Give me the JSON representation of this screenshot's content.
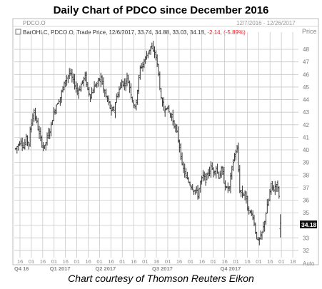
{
  "title": "Daily Chart of PDCO since December 2016",
  "caption": "Chart courtesy of Thomson Reuters Eikon",
  "header": {
    "ric": "PDCO.O",
    "date_range": "12/7/2016 - 12/26/2017",
    "price_label": "Price",
    "legend_text": "BarOHLC, PDCO.O, Trade Price, 12/6/2017, 33.74, 34.88, 33.03, 34.18,",
    "legend_change": "-2.14, (-5.89%)"
  },
  "last_price_tag": "34.18",
  "auto_label": "Auto",
  "colors": {
    "bars": "#333333",
    "grid": "#c8c8c8",
    "change": "#e8202a",
    "tag_bg": "#111111"
  },
  "chart_data": {
    "type": "ohlc",
    "ylim": [
      31.6,
      48.8
    ],
    "yticks": [
      "32",
      "33",
      "34",
      "35",
      "36",
      "37",
      "38",
      "39",
      "40",
      "41",
      "42",
      "43",
      "44",
      "45",
      "46",
      "47",
      "48"
    ],
    "x_ticks": [
      "16",
      "01",
      "16",
      "01",
      "16",
      "01",
      "16",
      "01",
      "16",
      "01",
      "16",
      "01",
      "16",
      "01",
      "16",
      "01",
      "16",
      "01",
      "16",
      "01",
      "16",
      "01",
      "16",
      "01",
      "18"
    ],
    "x_quarters": [
      "Q4 16",
      "Q1 2017",
      "Q2 2017",
      "Q3 2017",
      "Q4 2017"
    ],
    "close_path": [
      [
        0,
        40.1
      ],
      [
        2,
        40.4
      ],
      [
        4,
        40.8
      ],
      [
        6,
        40.2
      ],
      [
        8,
        40.9
      ],
      [
        10,
        40.5
      ],
      [
        11,
        41.5
      ],
      [
        13,
        42.8
      ],
      [
        14,
        43.0
      ],
      [
        16,
        42.2
      ],
      [
        18,
        41.2
      ],
      [
        20,
        40.5
      ],
      [
        22,
        40.2
      ],
      [
        24,
        41.0
      ],
      [
        26,
        41.5
      ],
      [
        28,
        42.5
      ],
      [
        30,
        43.3
      ],
      [
        32,
        43.8
      ],
      [
        34,
        44.2
      ],
      [
        36,
        44.9
      ],
      [
        38,
        45.6
      ],
      [
        40,
        45.9
      ],
      [
        41,
        46.1
      ],
      [
        43,
        45.7
      ],
      [
        45,
        45.2
      ],
      [
        47,
        44.7
      ],
      [
        49,
        44.9
      ],
      [
        51,
        45.5
      ],
      [
        53,
        45.8
      ],
      [
        55,
        44.8
      ],
      [
        57,
        44.3
      ],
      [
        59,
        44.8
      ],
      [
        61,
        45.2
      ],
      [
        63,
        45.4
      ],
      [
        65,
        45.8
      ],
      [
        67,
        44.8
      ],
      [
        69,
        44.2
      ],
      [
        71,
        43.7
      ],
      [
        73,
        43.0
      ],
      [
        75,
        43.2
      ],
      [
        77,
        44.2
      ],
      [
        79,
        44.8
      ],
      [
        81,
        45.4
      ],
      [
        83,
        45.2
      ],
      [
        85,
        45.8
      ],
      [
        87,
        45.0
      ],
      [
        89,
        44.0
      ],
      [
        91,
        43.3
      ],
      [
        93,
        44.8
      ],
      [
        95,
        46.5
      ],
      [
        97,
        46.8
      ],
      [
        99,
        47.3
      ],
      [
        101,
        47.8
      ],
      [
        103,
        48.2
      ],
      [
        105,
        47.8
      ],
      [
        107,
        47.5
      ],
      [
        109,
        46.0
      ],
      [
        111,
        44.0
      ],
      [
        113,
        43.2
      ],
      [
        115,
        43.5
      ],
      [
        117,
        43.0
      ],
      [
        119,
        42.6
      ],
      [
        121,
        42.0
      ],
      [
        123,
        41.3
      ],
      [
        125,
        40.3
      ],
      [
        127,
        38.7
      ],
      [
        129,
        38.2
      ],
      [
        131,
        37.6
      ],
      [
        133,
        37.3
      ],
      [
        135,
        37.0
      ],
      [
        137,
        36.8
      ],
      [
        139,
        36.4
      ],
      [
        141,
        37.4
      ],
      [
        143,
        37.9
      ],
      [
        145,
        37.6
      ],
      [
        147,
        38.2
      ],
      [
        149,
        38.6
      ],
      [
        151,
        38.3
      ],
      [
        153,
        38.6
      ],
      [
        155,
        37.9
      ],
      [
        157,
        38.4
      ],
      [
        159,
        37.5
      ],
      [
        161,
        36.9
      ],
      [
        163,
        37.0
      ],
      [
        165,
        38.5
      ],
      [
        167,
        39.6
      ],
      [
        169,
        40.0
      ],
      [
        171,
        36.8
      ],
      [
        173,
        36.4
      ],
      [
        175,
        36.6
      ],
      [
        177,
        35.3
      ],
      [
        179,
        35.0
      ],
      [
        181,
        34.8
      ],
      [
        183,
        33.5
      ],
      [
        185,
        32.7
      ],
      [
        187,
        33.0
      ],
      [
        189,
        33.8
      ],
      [
        191,
        35.0
      ],
      [
        193,
        36.0
      ],
      [
        195,
        37.2
      ],
      [
        197,
        36.8
      ],
      [
        199,
        37.4
      ],
      [
        201,
        36.4
      ],
      [
        202,
        35.7
      ]
    ],
    "last_bar": {
      "open": 33.74,
      "high": 34.88,
      "low": 33.03,
      "close": 34.18
    }
  }
}
